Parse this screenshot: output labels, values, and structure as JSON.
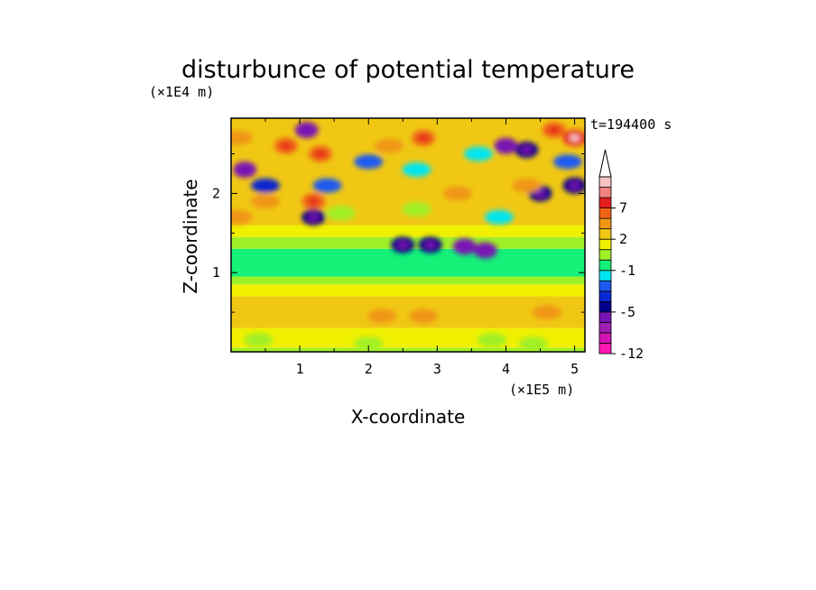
{
  "chart_data": {
    "type": "heatmap",
    "title": "disturbunce of potential temperature",
    "xlabel": "X-coordinate",
    "ylabel": "Z-coordinate",
    "x_unit": "(×1E5 m)",
    "y_unit": "(×1E4 m)",
    "time_label": "t=194400 s",
    "xlim": [
      0,
      5.15
    ],
    "ylim": [
      0,
      2.95
    ],
    "x_ticks": [
      "1",
      "2",
      "3",
      "4",
      "5"
    ],
    "y_ticks": [
      "1",
      "2"
    ],
    "colorbar": {
      "levels": [
        -12,
        -11,
        -9,
        -7,
        -5,
        -4,
        -3,
        -2,
        -1,
        0,
        1,
        2,
        3,
        5,
        7,
        8,
        9
      ],
      "tick_labels": [
        "7",
        "2",
        "-1",
        "-5",
        "-12"
      ],
      "colors": [
        "#ff14b4",
        "#d214b4",
        "#a01eb4",
        "#7814b4",
        "#00008c",
        "#0a28d2",
        "#1e5af0",
        "#00e6f0",
        "#14f078",
        "#a0f028",
        "#f0f000",
        "#f0c814",
        "#f09614",
        "#f06414",
        "#e61e1e",
        "#f08282",
        "#f5c3c3"
      ],
      "extend": "max"
    },
    "bands": [
      {
        "z": [
          0.0,
          0.05
        ],
        "value": 0.5
      },
      {
        "z": [
          0.05,
          0.3
        ],
        "value": 1.5
      },
      {
        "z": [
          0.3,
          0.7
        ],
        "value": 2.5
      },
      {
        "z": [
          0.7,
          0.85
        ],
        "value": 1.5
      },
      {
        "z": [
          0.85,
          0.95
        ],
        "value": 0.5
      },
      {
        "z": [
          0.95,
          1.3
        ],
        "value": -0.5
      },
      {
        "z": [
          1.3,
          1.45
        ],
        "value": 0.5
      },
      {
        "z": [
          1.45,
          1.6
        ],
        "value": 1.5
      },
      {
        "z": [
          1.6,
          2.95
        ],
        "value": 2.5
      }
    ],
    "anomalies": [
      {
        "x": 1.1,
        "z": 2.8,
        "value": -6
      },
      {
        "x": 0.2,
        "z": 2.3,
        "value": -6
      },
      {
        "x": 0.5,
        "z": 2.1,
        "value": -4
      },
      {
        "x": 1.2,
        "z": 1.7,
        "value": -5
      },
      {
        "x": 2.0,
        "z": 2.4,
        "value": -3
      },
      {
        "x": 1.4,
        "z": 2.1,
        "value": -3
      },
      {
        "x": 2.7,
        "z": 2.3,
        "value": -2
      },
      {
        "x": 3.6,
        "z": 2.5,
        "value": -2
      },
      {
        "x": 3.4,
        "z": 1.33,
        "value": -6
      },
      {
        "x": 3.7,
        "z": 1.28,
        "value": -6
      },
      {
        "x": 2.9,
        "z": 1.35,
        "value": -5
      },
      {
        "x": 2.5,
        "z": 1.35,
        "value": -5
      },
      {
        "x": 4.3,
        "z": 2.55,
        "value": -5
      },
      {
        "x": 5.0,
        "z": 2.1,
        "value": -5
      },
      {
        "x": 4.9,
        "z": 2.4,
        "value": -3
      },
      {
        "x": 4.5,
        "z": 2.0,
        "value": -5
      },
      {
        "x": 4.0,
        "z": 2.6,
        "value": -6
      },
      {
        "x": 3.9,
        "z": 1.7,
        "value": -2
      },
      {
        "x": 0.5,
        "z": 1.9,
        "value": 3
      },
      {
        "x": 1.2,
        "z": 1.9,
        "value": 5
      },
      {
        "x": 1.3,
        "z": 2.5,
        "value": 5
      },
      {
        "x": 0.8,
        "z": 2.6,
        "value": 5
      },
      {
        "x": 2.3,
        "z": 2.6,
        "value": 4
      },
      {
        "x": 2.8,
        "z": 2.7,
        "value": 5
      },
      {
        "x": 3.3,
        "z": 2.0,
        "value": 4
      },
      {
        "x": 4.7,
        "z": 2.8,
        "value": 5
      },
      {
        "x": 5.0,
        "z": 2.7,
        "value": 7
      },
      {
        "x": 4.3,
        "z": 2.1,
        "value": 4
      },
      {
        "x": 0.1,
        "z": 1.7,
        "value": 4
      },
      {
        "x": 0.1,
        "z": 2.7,
        "value": 4
      },
      {
        "x": 2.2,
        "z": 0.45,
        "value": 3
      },
      {
        "x": 2.8,
        "z": 0.45,
        "value": 3
      },
      {
        "x": 4.6,
        "z": 0.5,
        "value": 3
      },
      {
        "x": 1.6,
        "z": 1.75,
        "value": 0.5
      },
      {
        "x": 2.7,
        "z": 1.8,
        "value": 0.5
      },
      {
        "x": 0.4,
        "z": 0.15,
        "value": 0.5
      },
      {
        "x": 2.0,
        "z": 0.1,
        "value": 0.5
      },
      {
        "x": 3.8,
        "z": 0.15,
        "value": 0.5
      },
      {
        "x": 4.4,
        "z": 0.1,
        "value": 0.5
      }
    ]
  }
}
